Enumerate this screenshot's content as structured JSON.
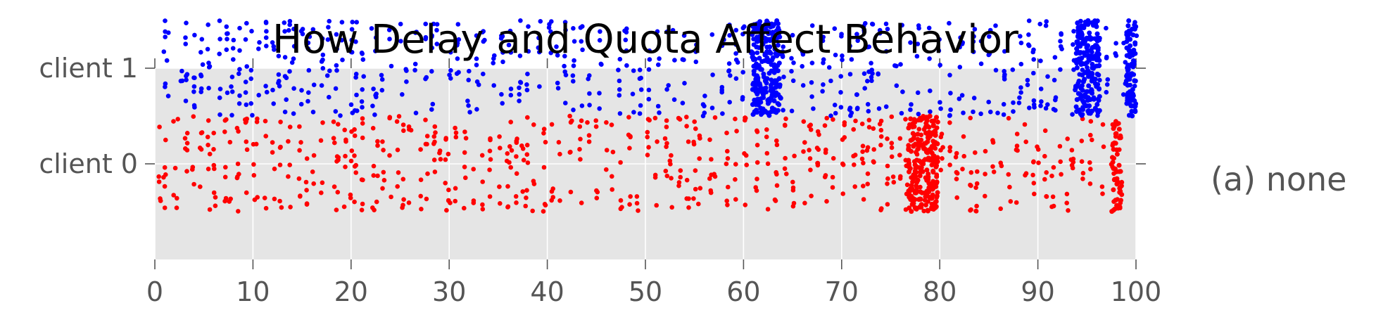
{
  "chart_data": {
    "type": "scatter",
    "title": "How Delay and Quota Affect Behavior",
    "xlabel": "",
    "ylabel": "",
    "xlim": [
      0,
      100
    ],
    "ylim": [
      -1,
      1
    ],
    "grid": true,
    "side_label": "(a) none",
    "x_ticks": [
      "0",
      "10",
      "20",
      "30",
      "40",
      "50",
      "60",
      "70",
      "80",
      "90",
      "100"
    ],
    "y_tick_labels": [
      "client 0",
      "client 1"
    ],
    "series": [
      {
        "name": "client 1",
        "color": "#0000ff",
        "y_center": 1,
        "jitter": 0.5,
        "x": [
          1.0,
          1.3,
          2.7,
          3.2,
          4.0,
          4.8,
          5.5,
          6.6,
          7.4,
          7.9,
          8.6,
          9.3,
          9.9,
          10.6,
          11.4,
          12.1,
          12.6,
          13.3,
          13.7,
          14.1,
          15.0,
          15.7,
          16.2,
          17.1,
          17.7,
          18.5,
          19.0,
          20.1,
          20.5,
          21.2,
          22.2,
          22.5,
          23.2,
          24.0,
          25.1,
          25.6,
          26.6,
          27.6,
          28.3,
          28.8,
          30.1,
          30.9,
          32.0,
          32.9,
          33.5,
          34.6,
          35.4,
          36.2,
          37.2,
          38.0,
          39.2,
          40.3,
          41.0,
          41.8,
          42.7,
          43.5,
          44.2,
          45.4,
          47.3,
          48.0,
          48.8,
          49.5,
          50.4,
          51.3,
          52.3,
          52.9,
          53.9,
          55.1,
          56.0,
          56.8,
          57.9,
          58.6,
          59.3,
          60.0,
          61.0,
          61.3,
          61.6,
          61.9,
          62.2,
          62.5,
          62.8,
          63.1,
          63.4,
          64.0,
          65.0,
          66.0,
          67.0,
          68.1,
          68.8,
          69.3,
          70.0,
          70.9,
          71.6,
          72.3,
          72.7,
          73.1,
          73.8,
          74.6,
          75.5,
          76.1,
          77.1,
          77.8,
          79.0,
          80.0,
          81.0,
          82.0,
          82.3,
          83.5,
          84.3,
          85.1,
          85.8,
          86.6,
          87.4,
          88.2,
          89.0,
          89.6,
          90.3,
          90.9,
          91.7,
          92.4,
          93.6,
          94.0,
          94.3,
          94.6,
          94.9,
          95.2,
          95.5,
          96.2,
          97.0,
          98.0,
          98.8,
          99.2,
          99.5,
          99.8,
          100.0
        ]
      },
      {
        "name": "client 0",
        "color": "#ff0000",
        "y_center": 0,
        "jitter": 0.5,
        "x": [
          0.5,
          1.0,
          2.0,
          2.3,
          3.2,
          3.9,
          4.7,
          5.5,
          6.1,
          7.2,
          7.7,
          8.5,
          9.3,
          10.1,
          10.4,
          11.3,
          12.1,
          12.8,
          13.7,
          14.8,
          15.5,
          16.2,
          17.0,
          18.2,
          18.6,
          19.4,
          20.0,
          20.4,
          21.1,
          22.3,
          22.7,
          23.3,
          24.0,
          24.8,
          25.3,
          26.0,
          27.1,
          27.7,
          28.5,
          29.1,
          29.7,
          30.0,
          30.7,
          31.6,
          32.4,
          33.3,
          34.1,
          35.2,
          36.0,
          36.3,
          36.8,
          37.5,
          37.9,
          38.6,
          39.7,
          40.5,
          41.2,
          42.4,
          43.4,
          44.2,
          45.0,
          46.0,
          46.6,
          47.5,
          48.4,
          49.2,
          50.3,
          51.1,
          52.1,
          52.6,
          53.5,
          54.3,
          55.0,
          55.5,
          56.6,
          57.1,
          58.3,
          59.2,
          60.2,
          61.3,
          62.4,
          63.3,
          64.3,
          65.1,
          66.2,
          66.8,
          67.6,
          68.4,
          69.1,
          70.2,
          71.3,
          72.2,
          72.7,
          73.3,
          74.0,
          74.6,
          75.2,
          76.0,
          76.6,
          77.2,
          77.6,
          78.0,
          78.4,
          78.8,
          79.2,
          79.6,
          80.2,
          81.0,
          81.7,
          82.4,
          83.2,
          83.7,
          84.6,
          85.5,
          86.2,
          87.1,
          87.8,
          88.7,
          89.5,
          90.0,
          90.8,
          91.5,
          92.3,
          93.0,
          93.5,
          94.5,
          95.4,
          96.6,
          97.7,
          98.0,
          98.3
        ]
      }
    ],
    "bursts": [
      {
        "series": 0,
        "x_min": 60.8,
        "x_max": 63.8,
        "count": 180
      },
      {
        "series": 0,
        "x_min": 93.8,
        "x_max": 96.3,
        "count": 160
      },
      {
        "series": 0,
        "x_min": 99.0,
        "x_max": 100.0,
        "count": 80
      },
      {
        "series": 1,
        "x_min": 76.8,
        "x_max": 79.8,
        "count": 200
      },
      {
        "series": 1,
        "x_min": 97.5,
        "x_max": 98.6,
        "count": 45
      }
    ],
    "colors": {
      "plot_background": "#e5e5e5",
      "grid": "#ffffff",
      "tick_text": "#555555",
      "title": "#000000"
    }
  }
}
